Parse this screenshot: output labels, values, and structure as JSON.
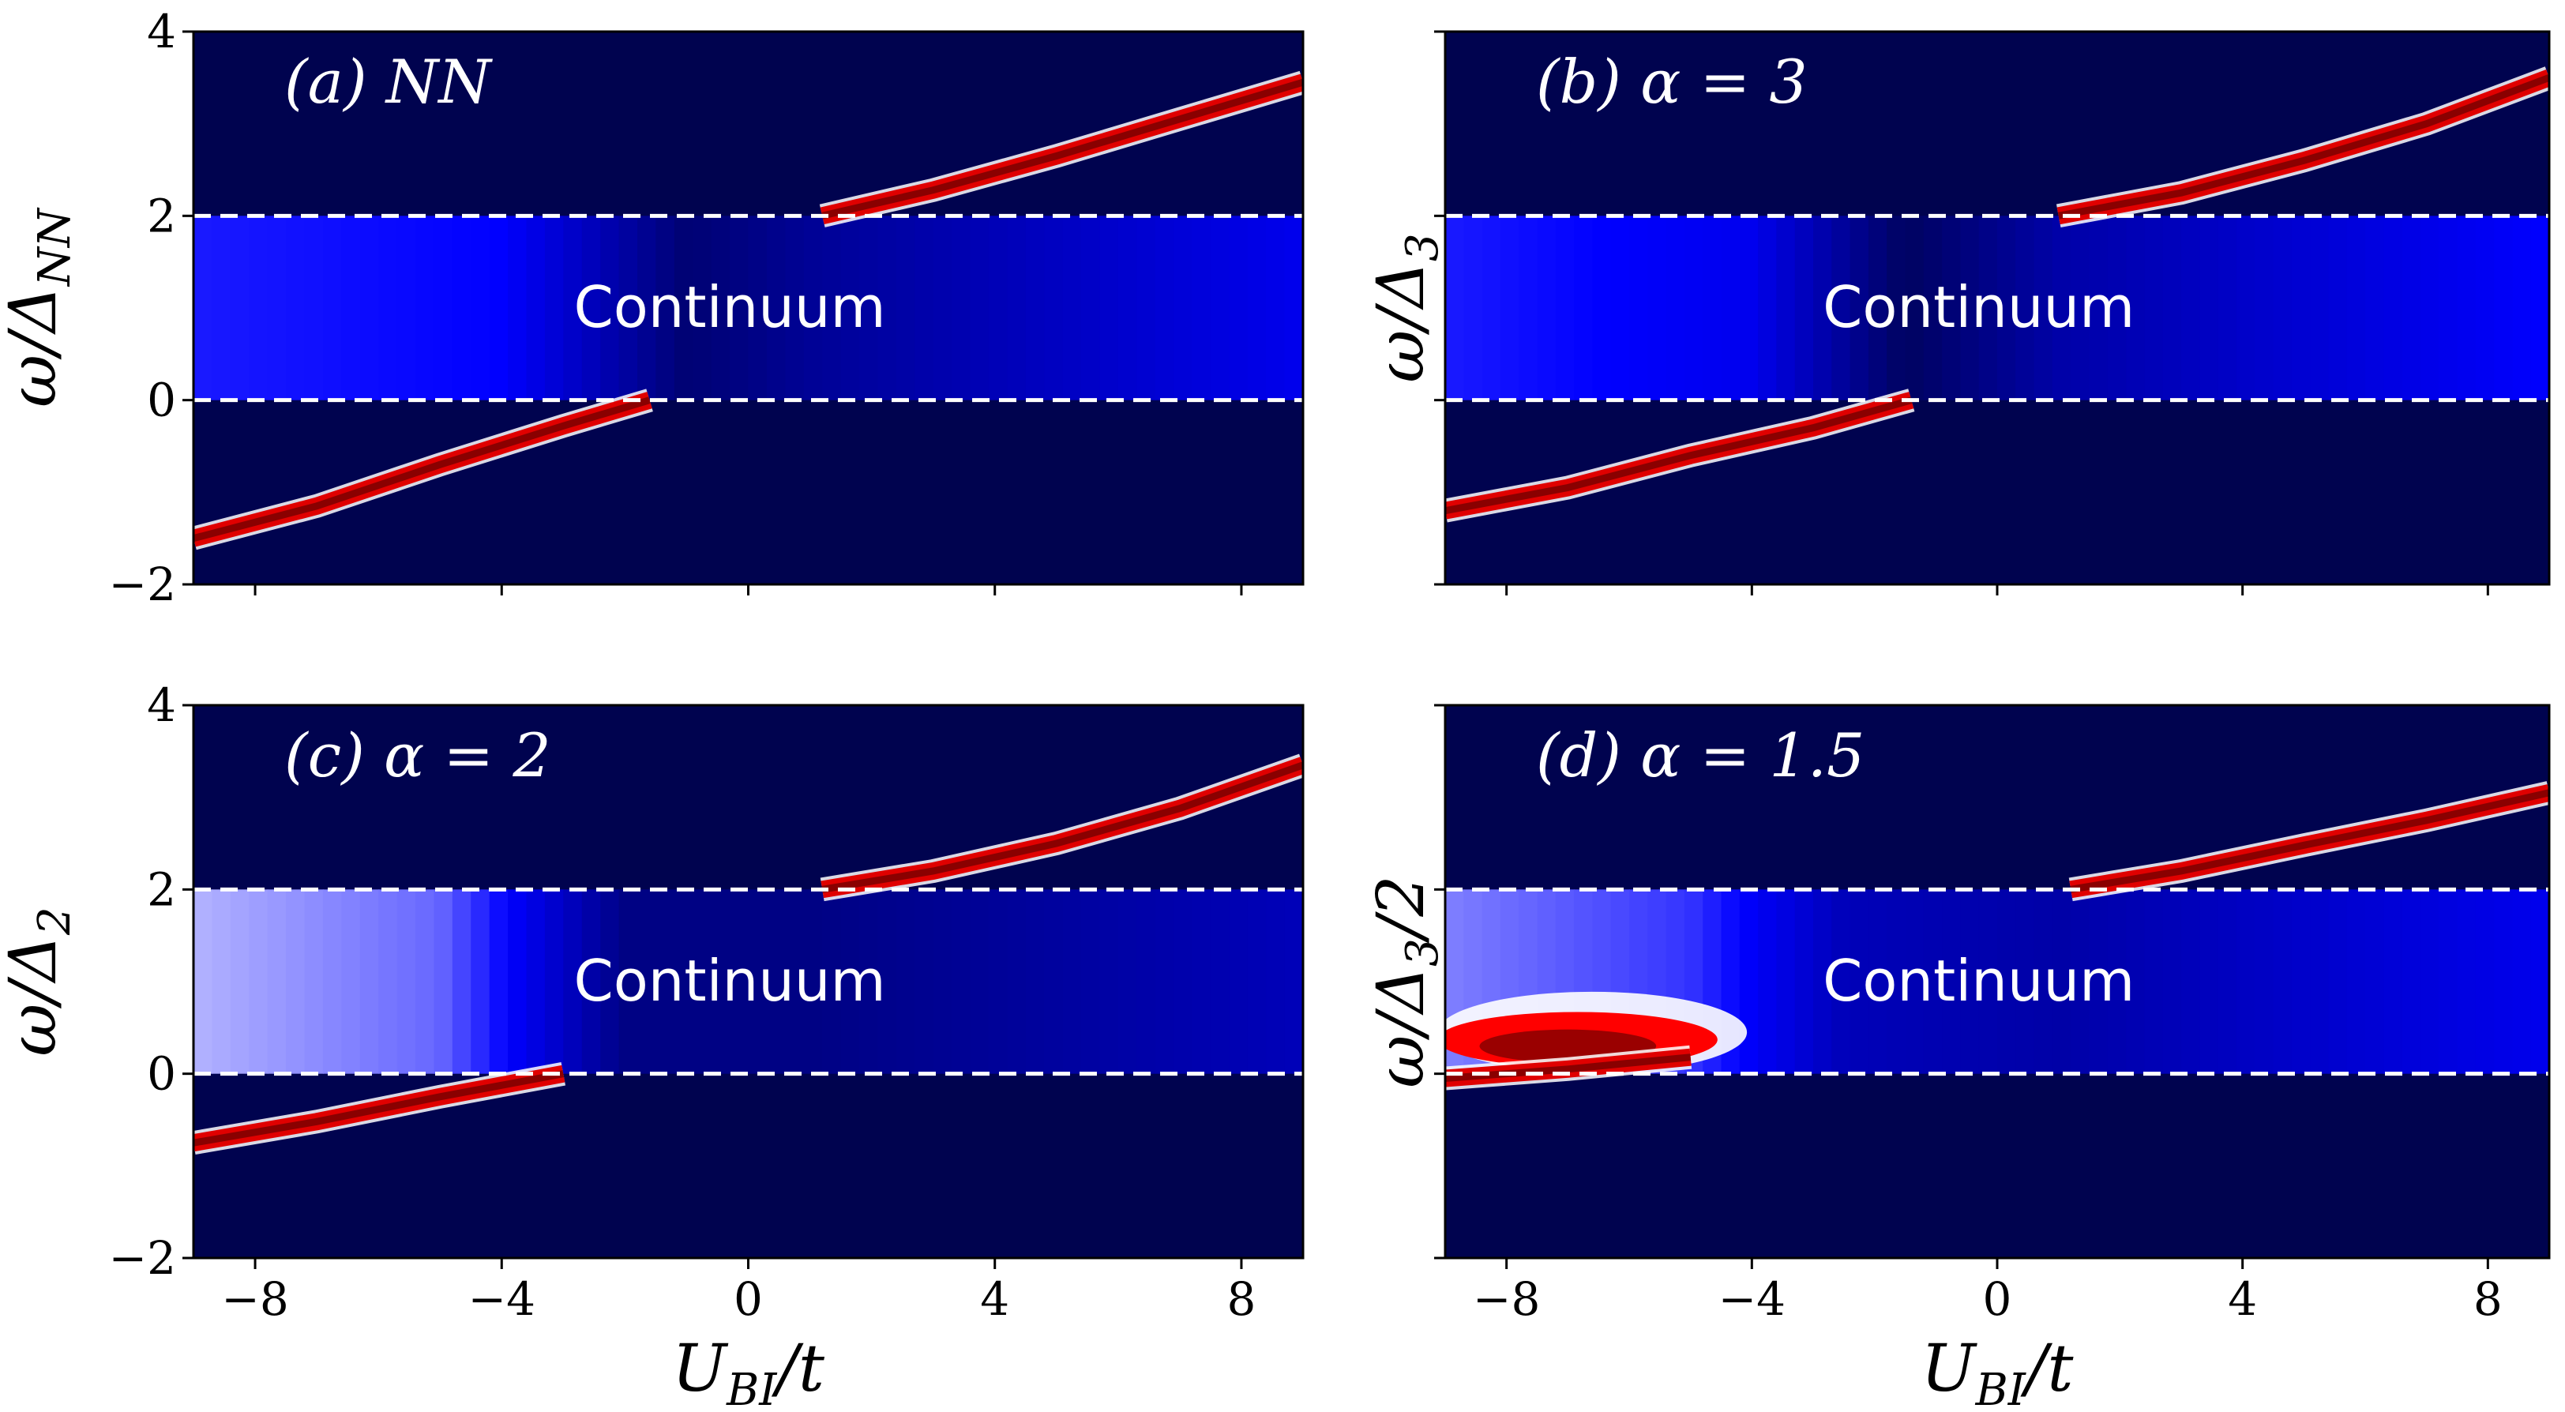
{
  "chart_data": [
    {
      "type": "heatmap",
      "panel_label": "(a)  NN",
      "ylabel": "ω/Δ_NN",
      "xlabel": "",
      "annotation": "Continuum",
      "xlim": [
        -9,
        9
      ],
      "ylim": [
        -2,
        4
      ],
      "xticks": [
        -8,
        -4,
        0,
        4,
        8
      ],
      "yticks": [
        -2,
        0,
        2,
        4
      ],
      "xticklabels_visible": false,
      "yticklabels_visible": true,
      "reference_lines_y": [
        0,
        2
      ],
      "continuum": {
        "y_range": [
          0,
          2
        ],
        "intensity_profile": [
          [
            -9,
            0.55
          ],
          [
            -4,
            0.5
          ],
          [
            -1,
            0.1
          ],
          [
            1,
            0.2
          ],
          [
            9,
            0.45
          ]
        ]
      },
      "branches": [
        {
          "name": "lower",
          "points": [
            [
              -9,
              -1.5
            ],
            [
              -7,
              -1.15
            ],
            [
              -5,
              -0.7
            ],
            [
              -3,
              -0.28
            ],
            [
              -1.6,
              0.0
            ]
          ]
        },
        {
          "name": "upper",
          "points": [
            [
              1.2,
              2.0
            ],
            [
              3,
              2.28
            ],
            [
              5,
              2.65
            ],
            [
              7,
              3.05
            ],
            [
              9,
              3.45
            ]
          ]
        }
      ],
      "colormap": [
        "#00034f",
        "#0000ff",
        "#ffffff",
        "#ff0000",
        "#7a0000"
      ]
    },
    {
      "type": "heatmap",
      "panel_label": "(b)  α = 3",
      "ylabel": "ω/Δ_3",
      "xlabel": "",
      "annotation": "Continuum",
      "xlim": [
        -9,
        9
      ],
      "ylim": [
        -2,
        4
      ],
      "xticks": [
        -8,
        -4,
        0,
        4,
        8
      ],
      "yticks": [
        -2,
        0,
        2,
        4
      ],
      "xticklabels_visible": false,
      "yticklabels_visible": false,
      "reference_lines_y": [
        0,
        2
      ],
      "continuum": {
        "y_range": [
          0,
          2
        ],
        "intensity_profile": [
          [
            -9,
            0.55
          ],
          [
            -4,
            0.45
          ],
          [
            -1.5,
            0.05
          ],
          [
            1,
            0.25
          ],
          [
            9,
            0.5
          ]
        ]
      },
      "branches": [
        {
          "name": "lower",
          "points": [
            [
              -9,
              -1.2
            ],
            [
              -7,
              -0.95
            ],
            [
              -5,
              -0.6
            ],
            [
              -3,
              -0.3
            ],
            [
              -1.4,
              0.0
            ]
          ]
        },
        {
          "name": "upper",
          "points": [
            [
              1.0,
              2.0
            ],
            [
              3,
              2.25
            ],
            [
              5,
              2.6
            ],
            [
              7,
              3.0
            ],
            [
              9,
              3.5
            ]
          ]
        }
      ],
      "colormap": [
        "#00034f",
        "#0000ff",
        "#ffffff",
        "#ff0000",
        "#7a0000"
      ]
    },
    {
      "type": "heatmap",
      "panel_label": "(c)  α = 2",
      "ylabel": "ω/Δ_2",
      "xlabel": "U_BI/t",
      "annotation": "Continuum",
      "xlim": [
        -9,
        9
      ],
      "ylim": [
        -2,
        4
      ],
      "xticks": [
        -8,
        -4,
        0,
        4,
        8
      ],
      "yticks": [
        -2,
        0,
        2,
        4
      ],
      "xticklabels_visible": true,
      "yticklabels_visible": true,
      "reference_lines_y": [
        0,
        2
      ],
      "continuum": {
        "y_range": [
          0,
          2
        ],
        "intensity_profile": [
          [
            -9,
            0.85
          ],
          [
            -5,
            0.7
          ],
          [
            -2,
            0.15
          ],
          [
            1,
            0.15
          ],
          [
            9,
            0.3
          ]
        ]
      },
      "branches": [
        {
          "name": "lower",
          "points": [
            [
              -9,
              -0.75
            ],
            [
              -7,
              -0.52
            ],
            [
              -5,
              -0.25
            ],
            [
              -3,
              0.0
            ]
          ]
        },
        {
          "name": "upper",
          "points": [
            [
              1.2,
              2.0
            ],
            [
              3,
              2.2
            ],
            [
              5,
              2.5
            ],
            [
              7,
              2.88
            ],
            [
              9,
              3.35
            ]
          ]
        }
      ],
      "colormap": [
        "#00034f",
        "#0000ff",
        "#ffffff",
        "#ff0000",
        "#7a0000"
      ]
    },
    {
      "type": "heatmap",
      "panel_label": "(d)  α = 1.5",
      "ylabel": "ω/Δ_3/2",
      "xlabel": "U_BI/t",
      "annotation": "Continuum",
      "xlim": [
        -9,
        9
      ],
      "ylim": [
        -2,
        4
      ],
      "xticks": [
        -8,
        -4,
        0,
        4,
        8
      ],
      "yticks": [
        -2,
        0,
        2,
        4
      ],
      "xticklabels_visible": true,
      "yticklabels_visible": false,
      "reference_lines_y": [
        0,
        2
      ],
      "continuum": {
        "y_range": [
          0,
          2
        ],
        "intensity_profile": [
          [
            -9,
            0.75
          ],
          [
            -5,
            0.6
          ],
          [
            -2.5,
            0.3
          ],
          [
            1,
            0.25
          ],
          [
            9,
            0.45
          ]
        ]
      },
      "bound_region": {
        "x_range": [
          -9,
          -4.2
        ],
        "y_range": [
          0.05,
          0.85
        ],
        "peak": [
          -7,
          0.3
        ]
      },
      "branches": [
        {
          "name": "lower",
          "points": [
            [
              -9,
              -0.05
            ],
            [
              -7,
              0.05
            ],
            [
              -5,
              0.18
            ]
          ]
        },
        {
          "name": "upper",
          "points": [
            [
              1.2,
              2.0
            ],
            [
              3,
              2.2
            ],
            [
              5,
              2.48
            ],
            [
              7,
              2.75
            ],
            [
              9,
              3.05
            ]
          ]
        }
      ],
      "colormap": [
        "#00034f",
        "#0000ff",
        "#ffffff",
        "#ff0000",
        "#7a0000"
      ]
    }
  ]
}
